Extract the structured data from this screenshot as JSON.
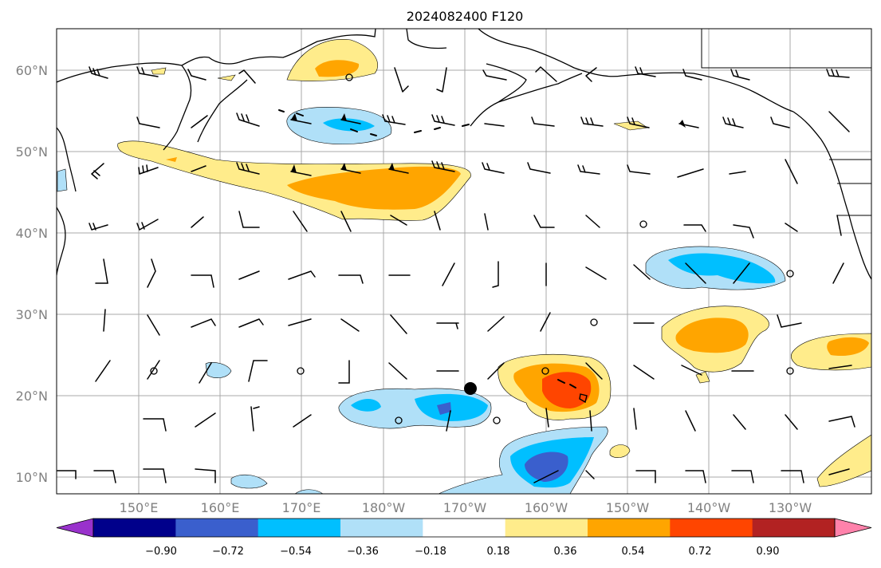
{
  "title": "2024082400 F120",
  "map": {
    "lat_labels": [
      "60°N",
      "50°N",
      "40°N",
      "30°N",
      "20°N",
      "10°N"
    ],
    "lon_labels": [
      "150°E",
      "160°E",
      "170°E",
      "180°W",
      "170°W",
      "160°W",
      "150°W",
      "140°W",
      "130°W"
    ],
    "marker": "storm-center"
  },
  "colorbar": {
    "ticks": [
      "−0.90",
      "−0.72",
      "−0.54",
      "−0.36",
      "−0.18",
      "0.18",
      "0.36",
      "0.54",
      "0.72",
      "0.90"
    ],
    "colors": [
      "#9932cc",
      "#00008b",
      "#3a5fcd",
      "#00bfff",
      "#b0e0f8",
      "#ffffff",
      "#ffec8b",
      "#ffa500",
      "#ff4500",
      "#b22222",
      "#ff82ab"
    ]
  }
}
